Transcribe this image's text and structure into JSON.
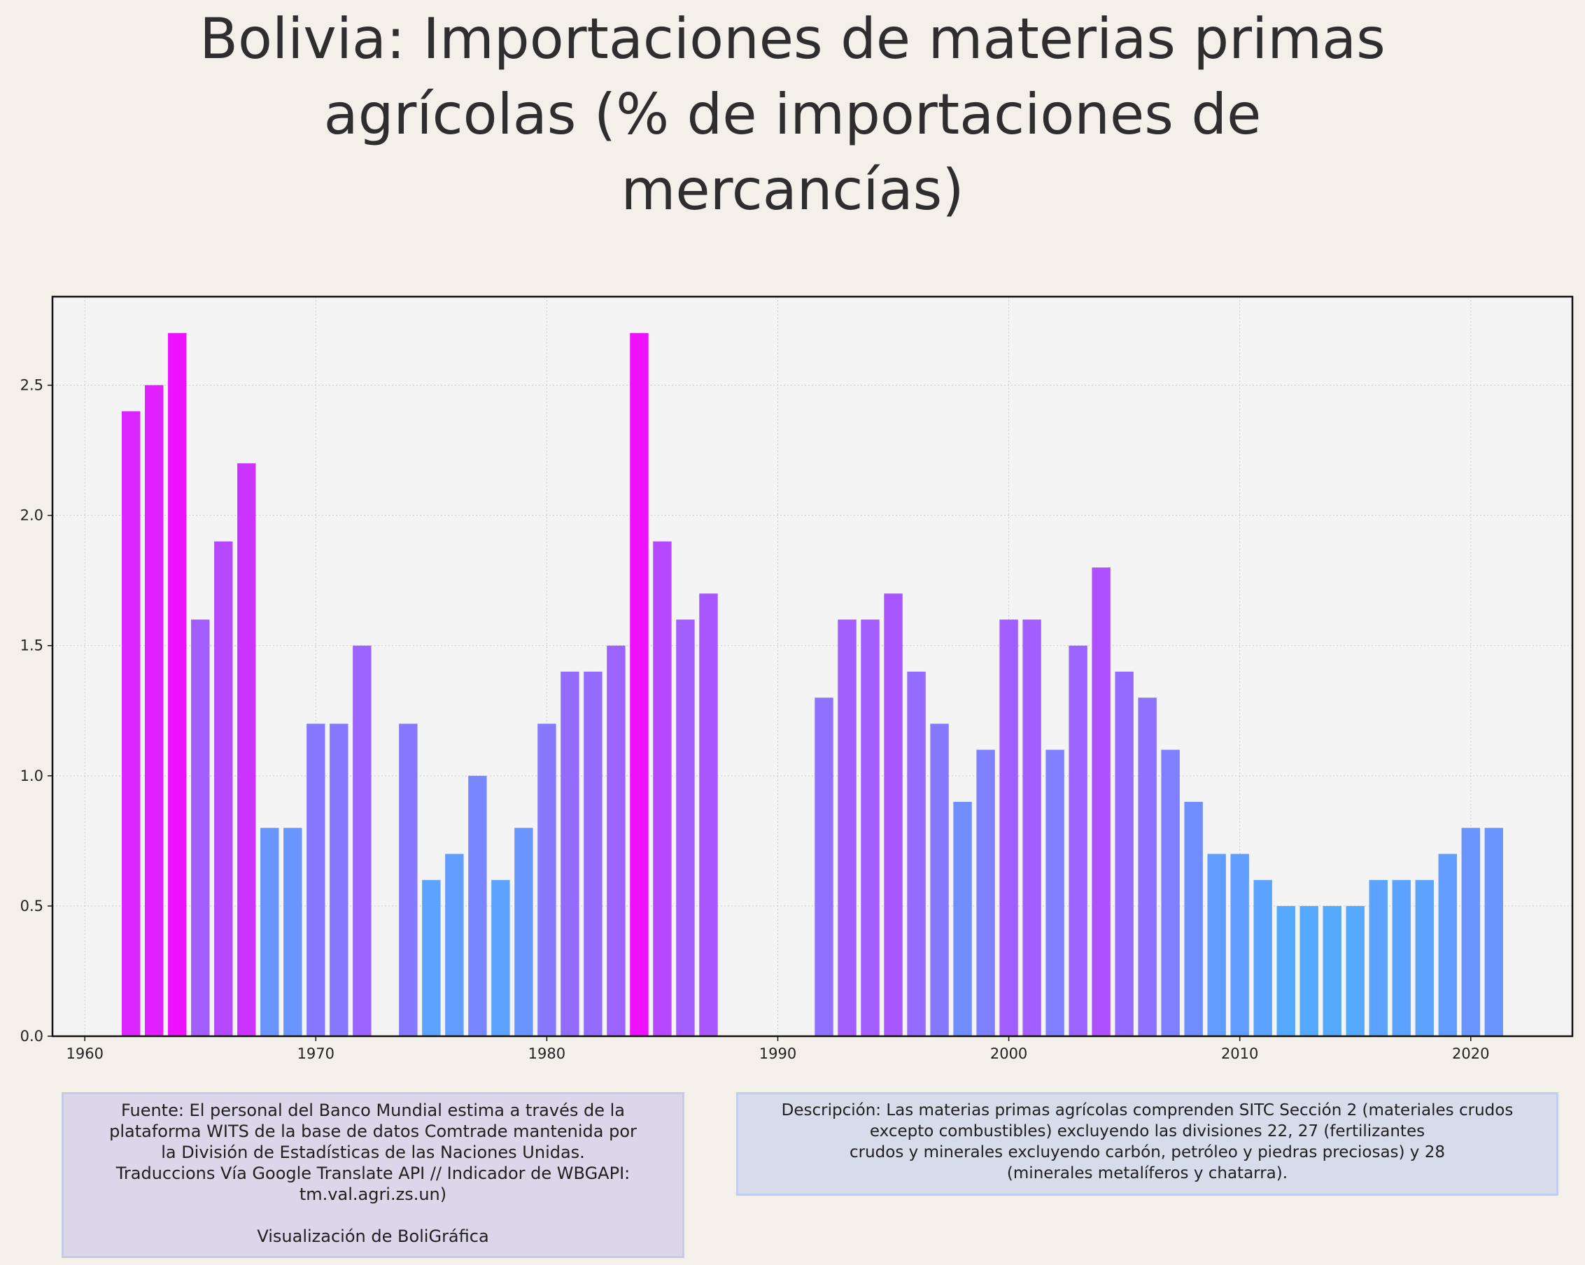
{
  "title_lines": [
    "Bolivia:  Importaciones de materias primas",
    "agrícolas (% de importaciones de",
    "mercancías)"
  ],
  "chart_data": {
    "type": "bar",
    "title": "Bolivia:  Importaciones de materias primas agrícolas (% de importaciones de mercancías)",
    "xlabel": "",
    "ylabel": "",
    "xlim": [
      1958.6,
      2024.4
    ],
    "ylim": [
      0,
      2.84
    ],
    "grid": true,
    "x_ticks": [
      1960,
      1970,
      1980,
      1990,
      2000,
      2010,
      2020
    ],
    "y_ticks": [
      "0.0",
      "0.5",
      "1.0",
      "1.5",
      "2.0",
      "2.5"
    ],
    "color_scale": {
      "low": "#55aaff",
      "high": "#ee11ff",
      "min": 0.5,
      "max": 2.7
    },
    "x": [
      1962,
      1963,
      1964,
      1965,
      1966,
      1967,
      1968,
      1969,
      1970,
      1971,
      1972,
      1974,
      1975,
      1976,
      1977,
      1978,
      1979,
      1980,
      1981,
      1982,
      1983,
      1984,
      1985,
      1986,
      1987,
      1992,
      1993,
      1994,
      1995,
      1996,
      1997,
      1998,
      1999,
      2000,
      2001,
      2002,
      2003,
      2004,
      2005,
      2006,
      2007,
      2008,
      2009,
      2010,
      2011,
      2012,
      2013,
      2014,
      2015,
      2016,
      2017,
      2018,
      2019,
      2020,
      2021
    ],
    "values": [
      2.4,
      2.5,
      2.7,
      1.6,
      1.9,
      2.2,
      0.8,
      0.8,
      1.2,
      1.2,
      1.5,
      1.2,
      0.6,
      0.7,
      1.0,
      0.6,
      0.8,
      1.2,
      1.4,
      1.4,
      1.5,
      2.7,
      1.9,
      1.6,
      1.7,
      1.3,
      1.6,
      1.6,
      1.7,
      1.4,
      1.2,
      0.9,
      1.1,
      1.6,
      1.6,
      1.1,
      1.5,
      1.8,
      1.4,
      1.3,
      1.1,
      0.9,
      0.7,
      0.7,
      0.6,
      0.5,
      0.5,
      0.5,
      0.5,
      0.6,
      0.6,
      0.6,
      0.7,
      0.8,
      0.8
    ]
  },
  "notes": {
    "source_lines": [
      "Fuente: El personal del Banco Mundial estima a través de la",
      "plataforma WITS de la base de datos Comtrade mantenida por",
      "la División de Estadísticas de las Naciones Unidas.",
      "Traduccions Vía Google Translate API // Indicador de WBGAPI:",
      "tm.val.agri.zs.un)"
    ],
    "credit": "Visualización de BoliGráfica",
    "description_lines": [
      "Descripción: Las materias primas agrícolas comprenden SITC Sección 2 (materiales crudos",
      "excepto combustibles) excluyendo las divisiones 22, 27 (fertilizantes",
      "crudos y minerales excluyendo carbón, petróleo y piedras preciosas) y 28",
      "(minerales metalíferos y chatarra)."
    ]
  }
}
